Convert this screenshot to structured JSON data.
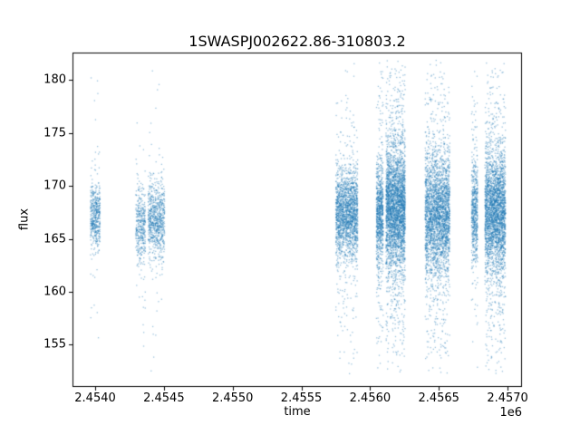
{
  "chart_data": {
    "type": "scatter",
    "title": "1SWASPJ002622.86-310803.2",
    "xlabel": "time",
    "ylabel": "flux",
    "x_offset_label": "1e6",
    "xlim": [
      2453835,
      2457105
    ],
    "ylim": [
      151.0,
      182.6
    ],
    "xticks": [
      2454000,
      2454500,
      2455000,
      2455500,
      2456000,
      2456500,
      2457000
    ],
    "xtick_labels": [
      "2.4540",
      "2.4545",
      "2.4550",
      "2.4555",
      "2.4560",
      "2.4565",
      "2.4570"
    ],
    "yticks": [
      155,
      160,
      165,
      170,
      175,
      180
    ],
    "ytick_labels": [
      "155",
      "160",
      "165",
      "170",
      "175",
      "180"
    ],
    "grid": false,
    "legend": "none",
    "marker_color": "#1f77b4",
    "marker_alpha": 0.45,
    "y_data_range": [
      152.2,
      181.9
    ],
    "clusters": [
      {
        "x": 2454000,
        "halfwidth": 35,
        "n": 500,
        "y_mean": 167.0,
        "core_sigma": 1.5,
        "tail_fraction": 0.1,
        "tail_sigma": 6.0
      },
      {
        "x": 2454330,
        "halfwidth": 35,
        "n": 400,
        "y_mean": 166.3,
        "core_sigma": 1.7,
        "tail_fraction": 0.1,
        "tail_sigma": 6.0
      },
      {
        "x": 2454445,
        "halfwidth": 60,
        "n": 800,
        "y_mean": 166.8,
        "core_sigma": 1.7,
        "tail_fraction": 0.08,
        "tail_sigma": 6.0
      },
      {
        "x": 2455830,
        "halfwidth": 80,
        "n": 2000,
        "y_mean": 167.3,
        "core_sigma": 2.0,
        "tail_fraction": 0.15,
        "tail_sigma": 6.5
      },
      {
        "x": 2456070,
        "halfwidth": 25,
        "n": 900,
        "y_mean": 167.5,
        "core_sigma": 2.4,
        "tail_fraction": 0.22,
        "tail_sigma": 7.0
      },
      {
        "x": 2456185,
        "halfwidth": 70,
        "n": 3300,
        "y_mean": 168.0,
        "core_sigma": 2.7,
        "tail_fraction": 0.28,
        "tail_sigma": 7.5
      },
      {
        "x": 2456490,
        "halfwidth": 90,
        "n": 3000,
        "y_mean": 167.3,
        "core_sigma": 2.6,
        "tail_fraction": 0.28,
        "tail_sigma": 7.5
      },
      {
        "x": 2456760,
        "halfwidth": 22,
        "n": 600,
        "y_mean": 167.4,
        "core_sigma": 2.2,
        "tail_fraction": 0.2,
        "tail_sigma": 7.0
      },
      {
        "x": 2456910,
        "halfwidth": 75,
        "n": 3000,
        "y_mean": 167.5,
        "core_sigma": 2.6,
        "tail_fraction": 0.28,
        "tail_sigma": 7.5
      }
    ]
  }
}
